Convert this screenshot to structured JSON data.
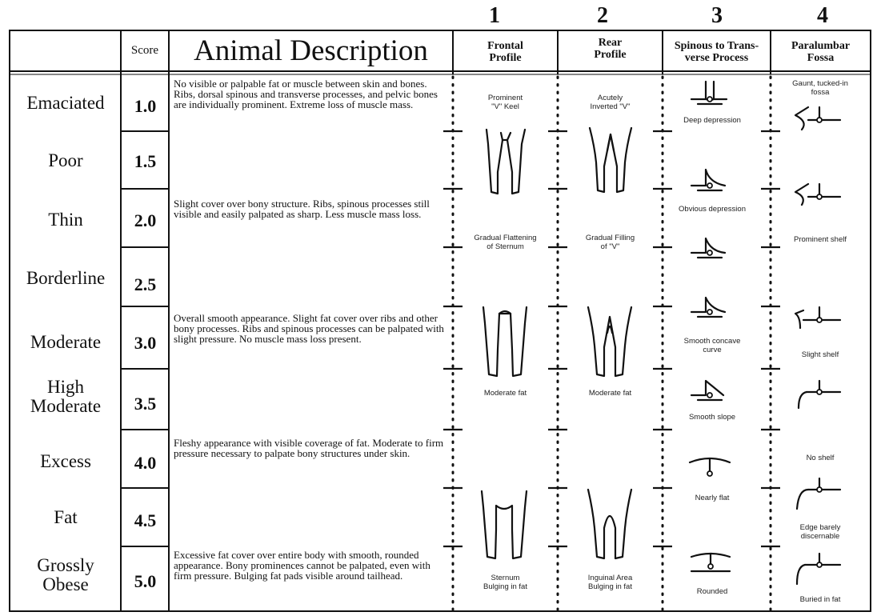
{
  "column_numbers": [
    "1",
    "2",
    "3",
    "4"
  ],
  "headers": {
    "score": "Score",
    "description": "Animal Description",
    "frontal": [
      "Frontal",
      "Profile"
    ],
    "rear": [
      "Rear",
      "Profile"
    ],
    "spinous": [
      "Spinous to Trans-",
      "verse Process"
    ],
    "paralumbar": [
      "Paralumbar",
      "Fossa"
    ]
  },
  "rows": [
    {
      "condition": [
        "Emaciated"
      ],
      "score": "1.0"
    },
    {
      "condition": [
        "Poor"
      ],
      "score": "1.5"
    },
    {
      "condition": [
        "Thin"
      ],
      "score": "2.0"
    },
    {
      "condition": [
        "Borderline"
      ],
      "score": "2.5"
    },
    {
      "condition": [
        "Moderate"
      ],
      "score": "3.0"
    },
    {
      "condition": [
        "High",
        "Moderate"
      ],
      "score": "3.5"
    },
    {
      "condition": [
        "Excess"
      ],
      "score": "4.0"
    },
    {
      "condition": [
        "Fat"
      ],
      "score": "4.5"
    },
    {
      "condition": [
        "Grossly",
        "Obese"
      ],
      "score": "5.0"
    }
  ],
  "descriptions": [
    "No visible or palpable fat or muscle between skin and bones. Ribs, dorsal spinous and transverse processes, and pelvic bones are individually prominent. Extreme loss of muscle mass.",
    "Slight cover over bony structure. Ribs, spinous processes still visible and easily palpated as sharp. Less muscle mass loss.",
    "Overall smooth appearance. Slight fat cover over ribs and other bony processes. Ribs and spinous processes can be palpated with slight pressure. No muscle mass loss present.",
    "Fleshy appearance with visible coverage of fat. Moderate to firm pressure necessary to palpate bony structures under skin.",
    "Excessive fat cover over entire body with smooth, rounded appearance. Bony prominences cannot be palpated, even with firm pressure. Bulging fat pads visible around tailhead."
  ],
  "frontal_labels": [
    [
      "Prominent",
      "\"V\" Keel"
    ],
    [
      "Gradual Flattening",
      "of Sternum"
    ],
    [
      "Moderate fat"
    ],
    [
      "Sternum",
      "Bulging in fat"
    ]
  ],
  "rear_labels": [
    [
      "Acutely",
      "Inverted \"V\""
    ],
    [
      "Gradual Filling",
      "of \"V\""
    ],
    [
      "Moderate fat"
    ],
    [
      "Inguinal Area",
      "Bulging in fat"
    ]
  ],
  "spinous_labels": [
    [
      "Deep depression"
    ],
    [
      "Obvious depression"
    ],
    [
      "Smooth concave",
      "curve"
    ],
    [
      "Smooth slope"
    ],
    [
      "Nearly flat"
    ],
    [
      "Rounded"
    ]
  ],
  "fossa_labels": [
    [
      "Gaunt, tucked-in",
      "fossa"
    ],
    [
      "Prominent shelf"
    ],
    [
      "Slight shelf"
    ],
    [
      "No shelf"
    ],
    [
      "Edge barely",
      "discernable"
    ],
    [
      "Buried in fat"
    ]
  ],
  "icons": [
    "leg-profile-icon",
    "spinous-process-icon",
    "paralumbar-fossa-icon"
  ]
}
